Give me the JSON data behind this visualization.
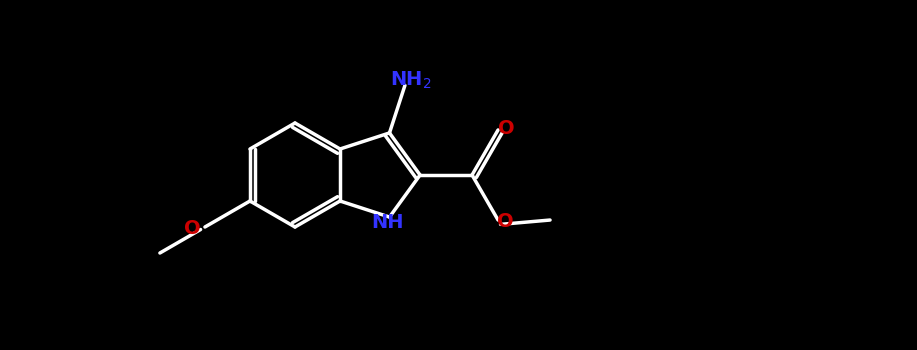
{
  "bg_color": "#000000",
  "bond_color": "#ffffff",
  "bond_width": 2.5,
  "atom_colors": {
    "N": "#3333ff",
    "O": "#cc0000",
    "C": "#ffffff"
  },
  "font_size": 14
}
